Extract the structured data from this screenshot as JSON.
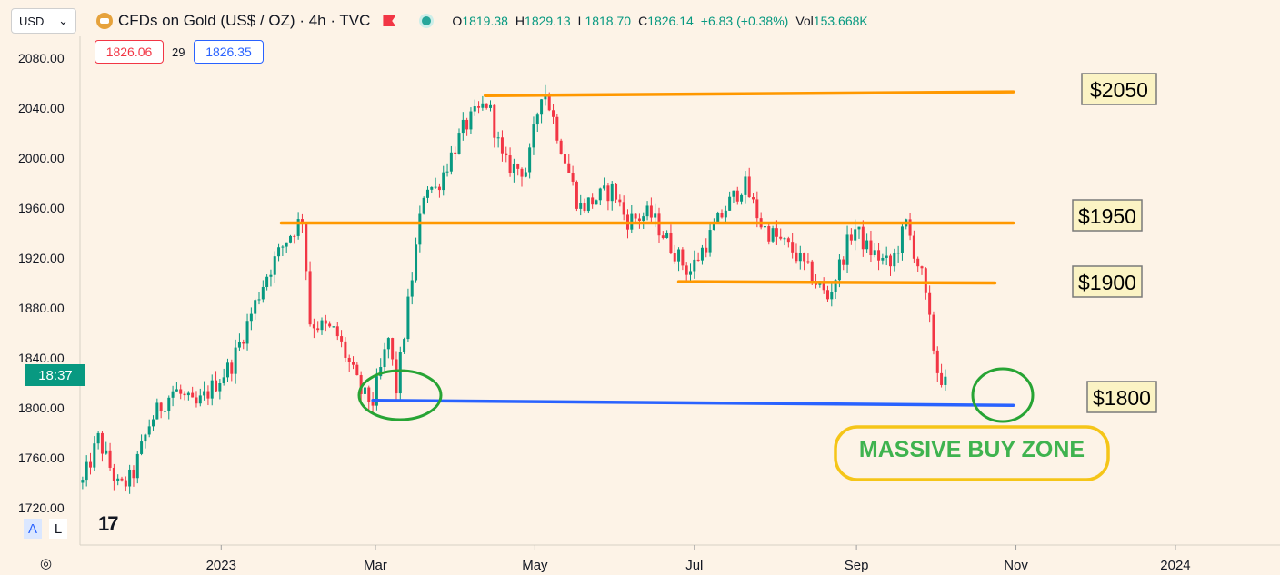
{
  "header": {
    "currency": "USD",
    "symbol_title": "CFDs on Gold (US$ / OZ) · 4h · TVC",
    "open_label": "O",
    "open": "1819.38",
    "high_label": "H",
    "high": "1829.13",
    "low_label": "L",
    "low": "1818.70",
    "close_label": "C",
    "close": "1826.14",
    "change": "+6.83 (+0.38%)",
    "vol_label": "Vol",
    "vol": "153.668K"
  },
  "quote": {
    "bid": "1826.06",
    "spread": "29",
    "ask": "1826.35"
  },
  "countdown": "18:37",
  "scale_buttons": {
    "auto": "A",
    "log": "L"
  },
  "colors": {
    "background": "#fdf3e7",
    "up": "#089981",
    "down": "#f23645",
    "resistance": "#ff9800",
    "support": "#2962ff",
    "circle": "#27a434",
    "zone_border": "#f5c518"
  },
  "chart_data": {
    "type": "candlestick",
    "ylim": [
      1710,
      2090
    ],
    "yticks": [
      1720,
      1760,
      1800,
      1840,
      1880,
      1920,
      1960,
      2000,
      2040,
      2080
    ],
    "ytick_labels": [
      "1720.00",
      "1760.00",
      "1800.00",
      "1840.00",
      "1880.00",
      "1920.00",
      "1960.00",
      "2000.00",
      "2040.00",
      "2080.00"
    ],
    "xlim": [
      "2022-11-08",
      "2024-02-10"
    ],
    "xticks": [
      {
        "date": "2023-01-01",
        "label": "2023"
      },
      {
        "date": "2023-03-01",
        "label": "Mar"
      },
      {
        "date": "2023-05-01",
        "label": "May"
      },
      {
        "date": "2023-07-01",
        "label": "Jul"
      },
      {
        "date": "2023-09-01",
        "label": "Sep"
      },
      {
        "date": "2023-11-01",
        "label": "Nov"
      },
      {
        "date": "2024-01-01",
        "label": "2024"
      }
    ],
    "price_path": [
      [
        "2022-11-09",
        1740
      ],
      [
        "2022-11-15",
        1775
      ],
      [
        "2022-11-23",
        1735
      ],
      [
        "2022-11-28",
        1745
      ],
      [
        "2022-12-05",
        1790
      ],
      [
        "2022-12-14",
        1815
      ],
      [
        "2022-12-22",
        1800
      ],
      [
        "2023-01-05",
        1835
      ],
      [
        "2023-01-18",
        1905
      ],
      [
        "2023-01-26",
        1935
      ],
      [
        "2023-02-02",
        1955
      ],
      [
        "2023-02-03",
        1870
      ],
      [
        "2023-02-14",
        1860
      ],
      [
        "2023-02-24",
        1810
      ],
      [
        "2023-02-28",
        1805
      ],
      [
        "2023-03-06",
        1855
      ],
      [
        "2023-03-09",
        1815
      ],
      [
        "2023-03-20",
        1980
      ],
      [
        "2023-03-24",
        1975
      ],
      [
        "2023-04-04",
        2025
      ],
      [
        "2023-04-13",
        2045
      ],
      [
        "2023-04-19",
        1995
      ],
      [
        "2023-04-28",
        1990
      ],
      [
        "2023-05-04",
        2060
      ],
      [
        "2023-05-18",
        1960
      ],
      [
        "2023-05-31",
        1975
      ],
      [
        "2023-06-05",
        1950
      ],
      [
        "2023-06-14",
        1955
      ],
      [
        "2023-06-29",
        1908
      ],
      [
        "2023-07-13",
        1960
      ],
      [
        "2023-07-20",
        1980
      ],
      [
        "2023-07-27",
        1945
      ],
      [
        "2023-08-08",
        1925
      ],
      [
        "2023-08-21",
        1888
      ],
      [
        "2023-08-31",
        1945
      ],
      [
        "2023-09-05",
        1928
      ],
      [
        "2023-09-14",
        1913
      ],
      [
        "2023-09-20",
        1947
      ],
      [
        "2023-09-26",
        1905
      ],
      [
        "2023-10-02",
        1830
      ],
      [
        "2023-10-06",
        1815
      ]
    ],
    "price_lines": [
      {
        "label": "$2050",
        "start": [
          "2023-04-12",
          2050
        ],
        "end": [
          "2023-10-31",
          2053
        ]
      },
      {
        "label": "$1950",
        "start": [
          "2023-01-24",
          1948
        ],
        "end": [
          "2023-10-31",
          1948
        ]
      },
      {
        "label": "$1900",
        "start": [
          "2023-06-25",
          1901
        ],
        "end": [
          "2023-10-24",
          1900
        ]
      },
      {
        "label": "$1800",
        "start": [
          "2023-02-28",
          1806
        ],
        "end": [
          "2023-10-31",
          1802
        ]
      }
    ],
    "annotations": [
      {
        "text": "MASSIVE BUY ZONE"
      }
    ]
  }
}
